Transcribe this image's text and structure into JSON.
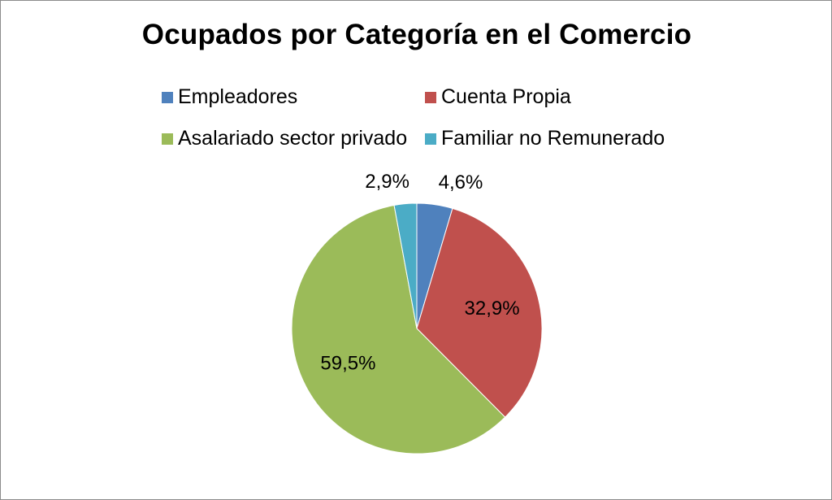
{
  "chart_data": {
    "type": "pie",
    "title": "Ocupados por Categoría en el Comercio",
    "categories": [
      "Empleadores",
      "Cuenta Propia",
      "Asalariado sector privado",
      "Familiar no Remunerado"
    ],
    "values": [
      4.6,
      32.9,
      59.5,
      2.9
    ],
    "value_labels": [
      "4,6%",
      "32,9%",
      "59,5%",
      "2,9%"
    ],
    "colors": [
      "#4f81bd",
      "#c0504d",
      "#9bbb59",
      "#4bacc6"
    ],
    "legend_position": "top",
    "start_angle": "top, clockwise"
  }
}
